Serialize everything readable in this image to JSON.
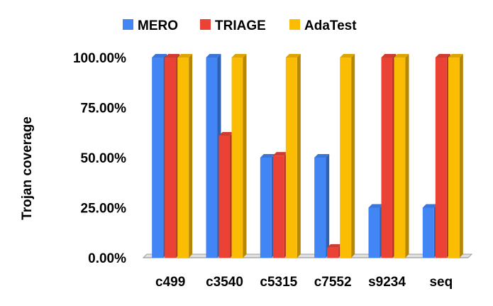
{
  "chart_data": {
    "type": "bar",
    "title": "",
    "xlabel": "",
    "ylabel": "Trojan coverage",
    "ylim": [
      0,
      100
    ],
    "yticks": [
      0,
      25,
      50,
      75,
      100
    ],
    "ytick_labels": [
      "0.00%",
      "25.00%",
      "50.00%",
      "75.00%",
      "100.00%"
    ],
    "categories": [
      "c499",
      "c3540",
      "c5315",
      "c7552",
      "s9234",
      "seq"
    ],
    "series": [
      {
        "name": "MERO",
        "color": "#4285f4",
        "values": [
          100,
          100,
          50,
          50,
          25,
          25
        ]
      },
      {
        "name": "TRIAGE",
        "color": "#ea4335",
        "values": [
          100,
          61,
          51,
          5,
          100,
          100
        ]
      },
      {
        "name": "AdaTest",
        "color": "#fbbc04",
        "values": [
          100,
          100,
          100,
          100,
          100,
          100
        ]
      }
    ],
    "legend_position": "top",
    "grid": false,
    "style": "3d-bars"
  }
}
